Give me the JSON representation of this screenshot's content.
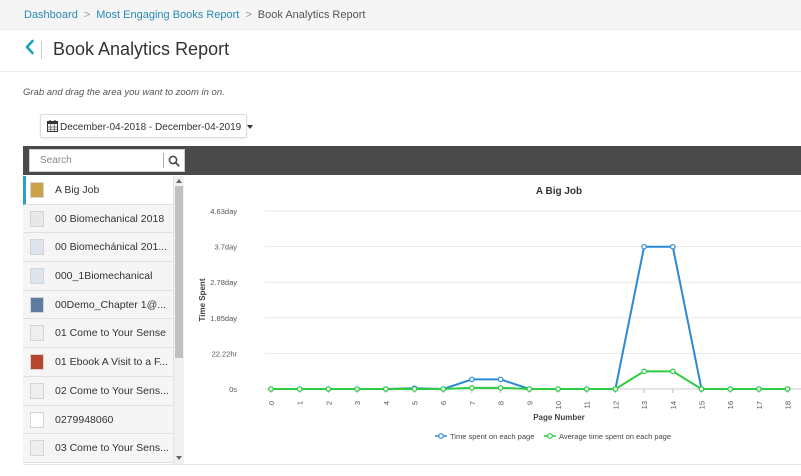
{
  "breadcrumb": {
    "items": [
      "Dashboard",
      "Most Engaging Books Report"
    ],
    "current": "Book Analytics Report",
    "separator": ">"
  },
  "page": {
    "title": "Book Analytics Report",
    "back_icon": "chevron-left-icon",
    "hint": "Grab and drag the area you want to zoom in on."
  },
  "date_range": {
    "label": "December-04-2018 - December-04-2019",
    "icon": "calendar-icon"
  },
  "search": {
    "placeholder": "Search",
    "icon": "search-icon"
  },
  "books": [
    {
      "label": "A Big Job",
      "selected": true
    },
    {
      "label": "00 Biomechanical 2018"
    },
    {
      "label": "00 Biomechánical 201..."
    },
    {
      "label": "000_1Biomechanical"
    },
    {
      "label": "00Demo_Chapter 1@..."
    },
    {
      "label": "01 Come to Your Sense"
    },
    {
      "label": "01 Ebook A Visit to a F..."
    },
    {
      "label": "02 Come to Your Sens..."
    },
    {
      "label": "0279948060"
    },
    {
      "label": "03 Come to Your Sens..."
    }
  ],
  "colors": {
    "accent": "#1aa3b5",
    "link": "#2a8ab3",
    "series_time": "#2a8ad6",
    "series_avg": "#2ecc40",
    "toolbar": "#4a4a4a"
  },
  "chart_data": {
    "type": "line",
    "title": "A Big Job",
    "xlabel": "Page Number",
    "ylabel": "Time Spent",
    "x": [
      0,
      1,
      2,
      3,
      4,
      5,
      6,
      7,
      8,
      9,
      10,
      11,
      12,
      13,
      14,
      15,
      16,
      17,
      18
    ],
    "y_ticks": [
      "0s",
      "22.22hr",
      "1.85day",
      "2.78day",
      "3.7day",
      "4.63day"
    ],
    "ylim": [
      0,
      4.63
    ],
    "y_unit": "day",
    "series": [
      {
        "name": "Time spent on each page",
        "values": [
          0,
          0,
          0,
          0,
          0,
          0.02,
          0,
          0.25,
          0.25,
          0,
          0,
          0,
          0,
          3.7,
          3.7,
          0,
          0,
          0,
          0
        ]
      },
      {
        "name": "Average time spent on each page",
        "values": [
          0,
          0,
          0,
          0,
          0,
          0,
          0,
          0.03,
          0.03,
          0,
          0,
          0,
          0,
          0.46,
          0.46,
          0,
          0,
          0,
          0
        ]
      }
    ],
    "legend_position": "bottom",
    "grid": true
  }
}
